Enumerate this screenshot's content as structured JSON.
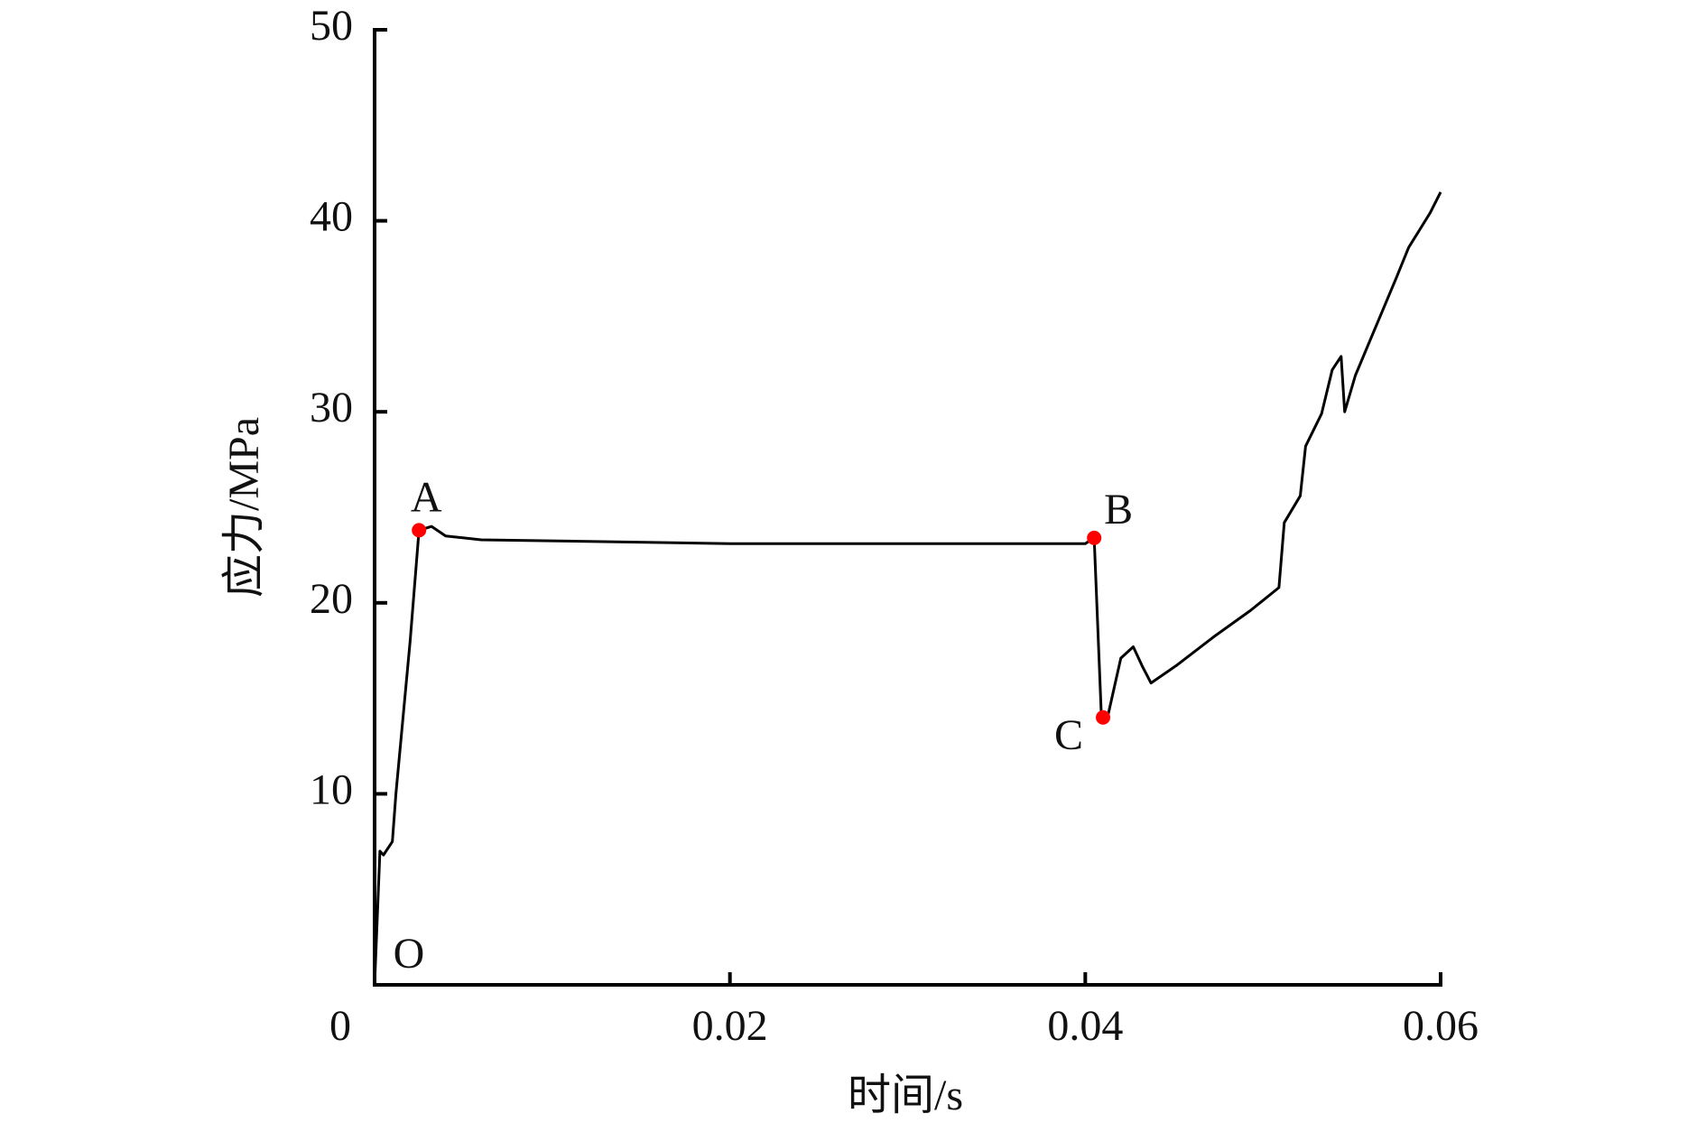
{
  "chart_data": {
    "type": "line",
    "xlabel": "时间/s",
    "ylabel": "应力/MPa",
    "xlim": [
      0,
      0.06
    ],
    "ylim": [
      0,
      50
    ],
    "xticks": [
      0,
      0.02,
      0.04,
      0.06
    ],
    "yticks": [
      10,
      20,
      30,
      40,
      50
    ],
    "grid": false,
    "series": [
      {
        "color": "#000000",
        "x": [
          0,
          0.0003,
          0.0005,
          0.001,
          0.0012,
          0.002,
          0.0025,
          0.0032,
          0.004,
          0.006,
          0.02,
          0.04,
          0.0405,
          0.0409,
          0.041,
          0.0413,
          0.042,
          0.0427,
          0.0432,
          0.0437,
          0.0451,
          0.0472,
          0.0493,
          0.0509,
          0.0512,
          0.0521,
          0.0524,
          0.0533,
          0.0539,
          0.0544,
          0.0546,
          0.0552,
          0.0561,
          0.0575,
          0.0582,
          0.0594,
          0.06
        ],
        "y": [
          0,
          7,
          6.8,
          7.5,
          10,
          18,
          23.8,
          24,
          23.5,
          23.3,
          23.1,
          23.1,
          23.4,
          14.2,
          14.0,
          14.2,
          17.1,
          17.7,
          16.7,
          15.8,
          16.7,
          18.2,
          19.6,
          20.8,
          24.2,
          25.6,
          28.2,
          29.9,
          32.2,
          32.9,
          30.0,
          31.9,
          33.9,
          37.0,
          38.6,
          40.4,
          41.5
        ]
      }
    ],
    "points": {
      "color": "#ff0000",
      "labels": [
        "A",
        "B",
        "C"
      ],
      "x": [
        0.0025,
        0.0405,
        0.041
      ],
      "y": [
        23.8,
        23.4,
        14.0
      ]
    },
    "annotations": [
      {
        "text": "O",
        "x": 0,
        "y": 0
      }
    ]
  }
}
